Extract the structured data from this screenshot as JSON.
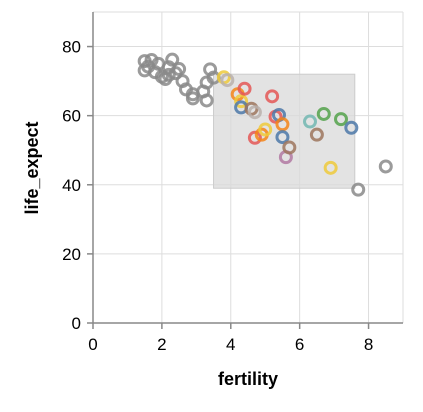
{
  "chart_data": {
    "type": "scatter",
    "xlabel": "fertility",
    "ylabel": "life_expect",
    "xlim": [
      0,
      9
    ],
    "ylim": [
      0,
      90
    ],
    "x_ticks": [
      0,
      2,
      4,
      6,
      8
    ],
    "y_ticks": [
      0,
      20,
      40,
      60,
      80
    ],
    "grid": true,
    "selection_brush": {
      "x": [
        3.5,
        7.6
      ],
      "y": [
        39,
        72
      ]
    },
    "colors": {
      "unselected": "#8a8a8a",
      "brush_fill": "#d9d9d9",
      "axis": "#888888",
      "grid": "#dddddd",
      "categorical": [
        "#4c78a8",
        "#f58518",
        "#e45756",
        "#72b7b2",
        "#54a24b",
        "#eeca3b",
        "#b279a2",
        "#ff9da6",
        "#9d755d",
        "#bab0ac"
      ]
    },
    "points": [
      {
        "x": 1.5,
        "y": 75.8,
        "c": null
      },
      {
        "x": 1.6,
        "y": 74.2,
        "c": null
      },
      {
        "x": 1.7,
        "y": 76.1,
        "c": null
      },
      {
        "x": 1.5,
        "y": 73.1,
        "c": null
      },
      {
        "x": 1.8,
        "y": 72.6,
        "c": null
      },
      {
        "x": 1.9,
        "y": 75.0,
        "c": null
      },
      {
        "x": 2.0,
        "y": 71.3,
        "c": null
      },
      {
        "x": 2.1,
        "y": 70.6,
        "c": null
      },
      {
        "x": 2.2,
        "y": 74.0,
        "c": null
      },
      {
        "x": 2.3,
        "y": 76.2,
        "c": null
      },
      {
        "x": 2.4,
        "y": 72.3,
        "c": null
      },
      {
        "x": 2.2,
        "y": 71.8,
        "c": null
      },
      {
        "x": 2.5,
        "y": 73.5,
        "c": null
      },
      {
        "x": 2.6,
        "y": 70.0,
        "c": null
      },
      {
        "x": 2.7,
        "y": 67.6,
        "c": null
      },
      {
        "x": 2.9,
        "y": 66.2,
        "c": null
      },
      {
        "x": 2.9,
        "y": 65.0,
        "c": null
      },
      {
        "x": 3.2,
        "y": 67.0,
        "c": null
      },
      {
        "x": 3.3,
        "y": 64.4,
        "c": null
      },
      {
        "x": 3.3,
        "y": 69.6,
        "c": null
      },
      {
        "x": 3.4,
        "y": 73.4,
        "c": null
      },
      {
        "x": 3.5,
        "y": 71.0,
        "c": null
      },
      {
        "x": 7.7,
        "y": 38.6,
        "c": null
      },
      {
        "x": 8.5,
        "y": 45.3,
        "c": null
      },
      {
        "x": 3.8,
        "y": 71.1,
        "c": 5
      },
      {
        "x": 3.9,
        "y": 70.3,
        "c": 9
      },
      {
        "x": 4.2,
        "y": 66.2,
        "c": 1
      },
      {
        "x": 4.3,
        "y": 64.2,
        "c": 5
      },
      {
        "x": 4.3,
        "y": 62.4,
        "c": 0
      },
      {
        "x": 4.4,
        "y": 67.8,
        "c": 2
      },
      {
        "x": 4.6,
        "y": 62.0,
        "c": 8
      },
      {
        "x": 4.7,
        "y": 61.0,
        "c": 9
      },
      {
        "x": 4.7,
        "y": 53.6,
        "c": 2
      },
      {
        "x": 4.9,
        "y": 54.5,
        "c": 1
      },
      {
        "x": 5.0,
        "y": 56.0,
        "c": 5
      },
      {
        "x": 5.2,
        "y": 65.6,
        "c": 2
      },
      {
        "x": 5.3,
        "y": 59.7,
        "c": 2
      },
      {
        "x": 5.4,
        "y": 60.2,
        "c": 0
      },
      {
        "x": 5.5,
        "y": 57.5,
        "c": 1
      },
      {
        "x": 5.5,
        "y": 53.8,
        "c": 0
      },
      {
        "x": 5.6,
        "y": 48.0,
        "c": 6
      },
      {
        "x": 5.7,
        "y": 50.8,
        "c": 8
      },
      {
        "x": 6.3,
        "y": 58.3,
        "c": 3
      },
      {
        "x": 6.5,
        "y": 54.5,
        "c": 8
      },
      {
        "x": 6.7,
        "y": 60.5,
        "c": 4
      },
      {
        "x": 6.9,
        "y": 44.9,
        "c": 5
      },
      {
        "x": 7.2,
        "y": 59.0,
        "c": 4
      },
      {
        "x": 7.5,
        "y": 56.5,
        "c": 0
      }
    ]
  }
}
